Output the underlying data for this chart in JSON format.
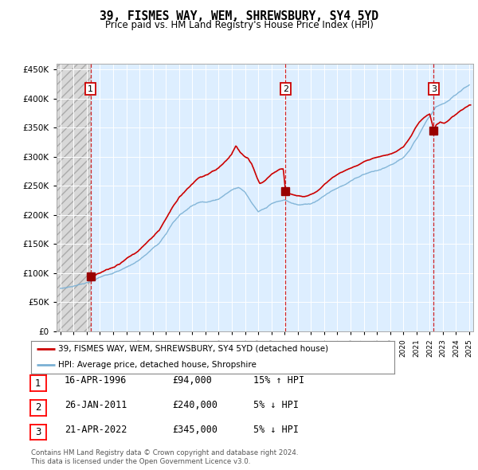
{
  "title": "39, FISMES WAY, WEM, SHREWSBURY, SY4 5YD",
  "subtitle": "Price paid vs. HM Land Registry's House Price Index (HPI)",
  "legend_line1": "39, FISMES WAY, WEM, SHREWSBURY, SY4 5YD (detached house)",
  "legend_line2": "HPI: Average price, detached house, Shropshire",
  "transactions": [
    {
      "num": 1,
      "date": "16-APR-1996",
      "price": 94000,
      "rel": "15% ↑ HPI",
      "year": 1996.29
    },
    {
      "num": 2,
      "date": "26-JAN-2011",
      "price": 240000,
      "rel": "5% ↓ HPI",
      "year": 2011.07
    },
    {
      "num": 3,
      "date": "21-APR-2022",
      "price": 345000,
      "rel": "5% ↓ HPI",
      "year": 2022.3
    }
  ],
  "footnote1": "Contains HM Land Registry data © Crown copyright and database right 2024.",
  "footnote2": "This data is licensed under the Open Government Licence v3.0.",
  "hpi_color": "#7ab0d4",
  "price_color": "#cc0000",
  "dot_color": "#990000",
  "vline_color": "#cc0000",
  "bg_plot": "#ddeeff",
  "ylim": [
    0,
    460000
  ],
  "yticks": [
    0,
    50000,
    100000,
    150000,
    200000,
    250000,
    300000,
    350000,
    400000,
    450000
  ],
  "xlim_start": 1993.7,
  "xlim_end": 2025.3,
  "hpi_anchors": [
    [
      1994.0,
      68000
    ],
    [
      1994.5,
      70000
    ],
    [
      1995.0,
      73000
    ],
    [
      1995.5,
      76000
    ],
    [
      1996.0,
      79000
    ],
    [
      1996.5,
      82000
    ],
    [
      1997.0,
      87000
    ],
    [
      1997.5,
      91000
    ],
    [
      1998.0,
      96000
    ],
    [
      1998.5,
      100000
    ],
    [
      1999.0,
      106000
    ],
    [
      1999.5,
      112000
    ],
    [
      2000.0,
      119000
    ],
    [
      2000.5,
      128000
    ],
    [
      2001.0,
      138000
    ],
    [
      2001.5,
      148000
    ],
    [
      2002.0,
      163000
    ],
    [
      2002.5,
      182000
    ],
    [
      2003.0,
      196000
    ],
    [
      2003.5,
      205000
    ],
    [
      2004.0,
      215000
    ],
    [
      2004.5,
      220000
    ],
    [
      2005.0,
      222000
    ],
    [
      2005.5,
      224000
    ],
    [
      2006.0,
      228000
    ],
    [
      2006.5,
      236000
    ],
    [
      2007.0,
      244000
    ],
    [
      2007.5,
      250000
    ],
    [
      2008.0,
      242000
    ],
    [
      2008.5,
      225000
    ],
    [
      2009.0,
      208000
    ],
    [
      2009.5,
      212000
    ],
    [
      2010.0,
      220000
    ],
    [
      2010.5,
      224000
    ],
    [
      2011.0,
      226000
    ],
    [
      2011.5,
      222000
    ],
    [
      2012.0,
      220000
    ],
    [
      2012.5,
      220000
    ],
    [
      2013.0,
      222000
    ],
    [
      2013.5,
      228000
    ],
    [
      2014.0,
      236000
    ],
    [
      2014.5,
      244000
    ],
    [
      2015.0,
      250000
    ],
    [
      2015.5,
      256000
    ],
    [
      2016.0,
      262000
    ],
    [
      2016.5,
      268000
    ],
    [
      2017.0,
      274000
    ],
    [
      2017.5,
      278000
    ],
    [
      2018.0,
      280000
    ],
    [
      2018.5,
      283000
    ],
    [
      2019.0,
      287000
    ],
    [
      2019.5,
      292000
    ],
    [
      2020.0,
      298000
    ],
    [
      2020.5,
      312000
    ],
    [
      2021.0,
      330000
    ],
    [
      2021.5,
      352000
    ],
    [
      2022.0,
      372000
    ],
    [
      2022.5,
      388000
    ],
    [
      2023.0,
      392000
    ],
    [
      2023.5,
      398000
    ],
    [
      2024.0,
      408000
    ],
    [
      2024.5,
      418000
    ],
    [
      2025.0,
      425000
    ]
  ],
  "price_anchors_seg1": [
    [
      1996.29,
      94000
    ],
    [
      1996.5,
      95000
    ],
    [
      1997.0,
      100000
    ],
    [
      1997.5,
      106000
    ],
    [
      1998.0,
      112000
    ],
    [
      1998.5,
      118000
    ],
    [
      1999.0,
      126000
    ],
    [
      1999.5,
      133000
    ],
    [
      2000.0,
      142000
    ],
    [
      2000.5,
      153000
    ],
    [
      2001.0,
      164000
    ],
    [
      2001.5,
      176000
    ],
    [
      2002.0,
      195000
    ],
    [
      2002.5,
      215000
    ],
    [
      2003.0,
      232000
    ],
    [
      2003.5,
      245000
    ],
    [
      2004.0,
      255000
    ],
    [
      2004.5,
      265000
    ],
    [
      2005.0,
      268000
    ],
    [
      2005.5,
      272000
    ],
    [
      2006.0,
      278000
    ],
    [
      2006.5,
      288000
    ],
    [
      2007.0,
      300000
    ],
    [
      2007.3,
      315000
    ],
    [
      2007.6,
      305000
    ],
    [
      2007.9,
      298000
    ],
    [
      2008.2,
      295000
    ],
    [
      2008.5,
      285000
    ],
    [
      2008.8,
      268000
    ],
    [
      2009.1,
      252000
    ],
    [
      2009.4,
      255000
    ],
    [
      2009.7,
      262000
    ],
    [
      2010.0,
      268000
    ],
    [
      2010.3,
      272000
    ],
    [
      2010.6,
      278000
    ],
    [
      2010.9,
      280000
    ],
    [
      2011.07,
      240000
    ]
  ],
  "price_anchors_seg2": [
    [
      2011.07,
      240000
    ],
    [
      2011.3,
      238000
    ],
    [
      2011.6,
      236000
    ],
    [
      2011.9,
      234000
    ],
    [
      2012.2,
      233000
    ],
    [
      2012.5,
      232000
    ],
    [
      2012.8,
      234000
    ],
    [
      2013.1,
      237000
    ],
    [
      2013.4,
      240000
    ],
    [
      2013.7,
      245000
    ],
    [
      2014.0,
      252000
    ],
    [
      2014.3,
      258000
    ],
    [
      2014.6,
      264000
    ],
    [
      2014.9,
      268000
    ],
    [
      2015.2,
      272000
    ],
    [
      2015.5,
      275000
    ],
    [
      2015.8,
      278000
    ],
    [
      2016.1,
      281000
    ],
    [
      2016.4,
      284000
    ],
    [
      2016.7,
      287000
    ],
    [
      2017.0,
      291000
    ],
    [
      2017.3,
      294000
    ],
    [
      2017.6,
      296000
    ],
    [
      2017.9,
      298000
    ],
    [
      2018.2,
      300000
    ],
    [
      2018.5,
      302000
    ],
    [
      2018.8,
      303000
    ],
    [
      2019.1,
      305000
    ],
    [
      2019.4,
      308000
    ],
    [
      2019.7,
      312000
    ],
    [
      2020.0,
      316000
    ],
    [
      2020.3,
      325000
    ],
    [
      2020.6,
      335000
    ],
    [
      2020.9,
      348000
    ],
    [
      2021.2,
      358000
    ],
    [
      2021.5,
      365000
    ],
    [
      2021.8,
      370000
    ],
    [
      2022.0,
      372000
    ],
    [
      2022.3,
      345000
    ]
  ],
  "price_anchors_seg3": [
    [
      2022.3,
      345000
    ],
    [
      2022.5,
      355000
    ],
    [
      2022.8,
      360000
    ],
    [
      2023.1,
      358000
    ],
    [
      2023.4,
      362000
    ],
    [
      2023.7,
      368000
    ],
    [
      2024.0,
      372000
    ],
    [
      2024.3,
      378000
    ],
    [
      2024.6,
      382000
    ],
    [
      2024.9,
      386000
    ],
    [
      2025.0,
      388000
    ]
  ]
}
